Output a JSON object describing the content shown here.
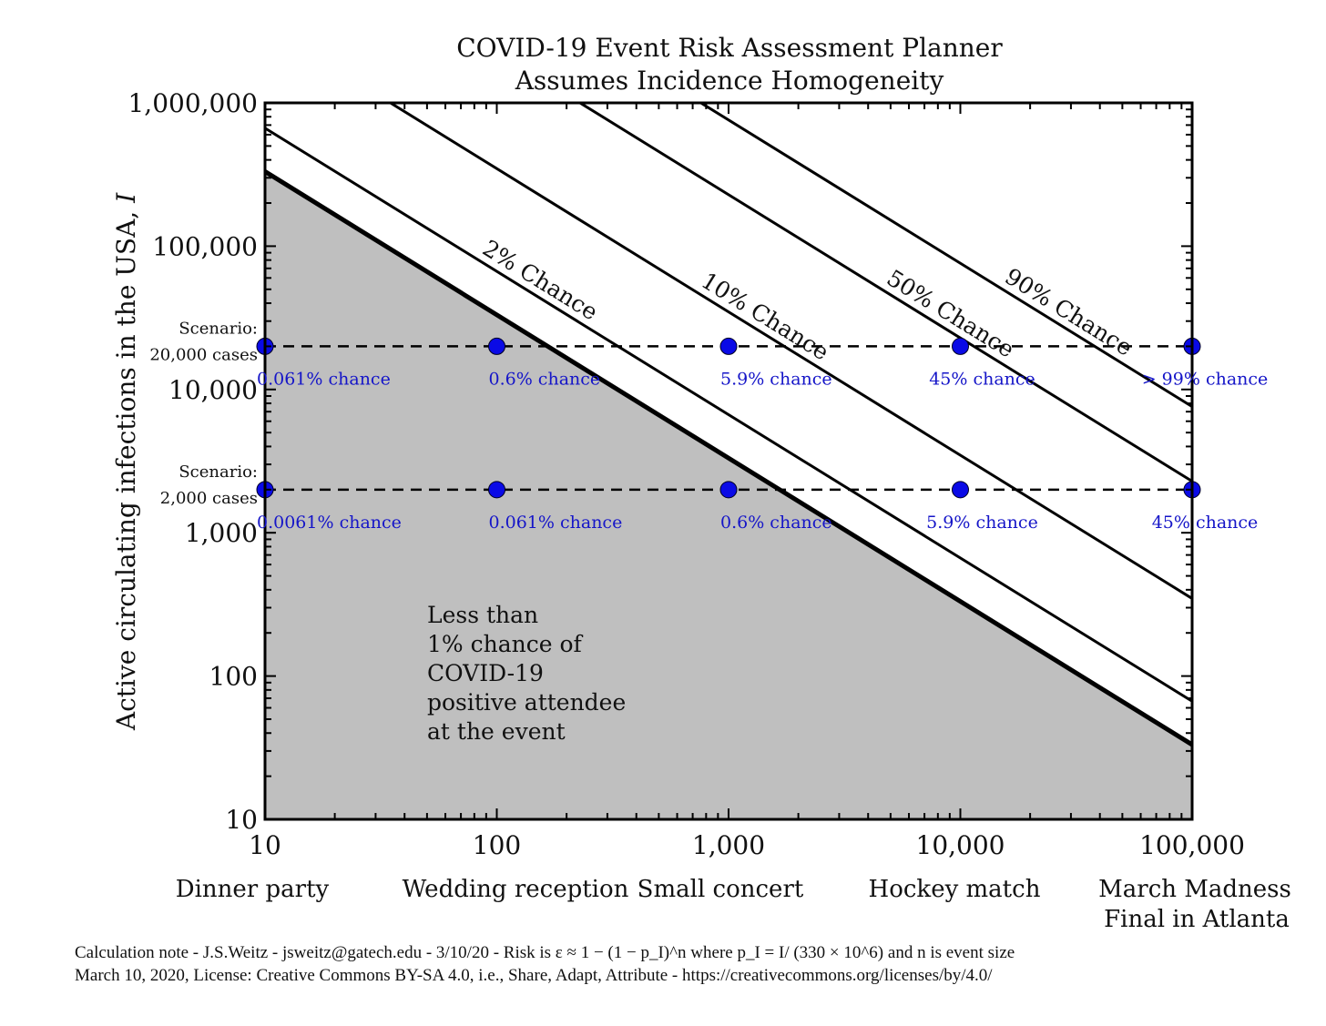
{
  "chart_data": {
    "type": "line",
    "title": "COVID-19 Event Risk Assessment Planner",
    "subtitle": "Assumes Incidence Homogeneity",
    "ylabel": "Active circulating infections in the USA, I",
    "ylabel_symbol": "I",
    "xscale": "log",
    "yscale": "log",
    "xlim": [
      10,
      100000
    ],
    "ylim": [
      10,
      1000000
    ],
    "x_ticks": [
      "10",
      "100",
      "1,000",
      "10,000",
      "100,000"
    ],
    "y_ticks": [
      "10",
      "100",
      "1,000",
      "10,000",
      "100,000",
      "1,000,000"
    ],
    "categories": [
      "Dinner party",
      "Wedding reception",
      "Small concert",
      "Hockey match",
      "March Madness Final in Atlanta"
    ],
    "category_sizes": [
      10,
      100,
      1000,
      10000,
      100000
    ],
    "series": [
      {
        "name": "1% threshold",
        "probability": 0.01,
        "x": [
          10,
          100000
        ],
        "y": [
          331700,
          33.2
        ]
      },
      {
        "name": "2% Chance",
        "label": "2% Chance",
        "probability": 0.02,
        "x": [
          10,
          100000
        ],
        "y": [
          666700,
          66.7
        ]
      },
      {
        "name": "10% Chance",
        "label": "10% Chance",
        "probability": 0.1,
        "x": [
          10,
          100000
        ],
        "y": [
          3477000,
          347.7
        ]
      },
      {
        "name": "50% Chance",
        "label": "50% Chance",
        "probability": 0.5,
        "x": [
          10,
          100000
        ],
        "y": [
          22870000,
          2287
        ]
      },
      {
        "name": "90% Chance",
        "label": "90% Chance",
        "probability": 0.9,
        "x": [
          10,
          100000
        ],
        "y": [
          75980000,
          7598
        ]
      }
    ],
    "shaded_region": "Less than 1% chance of COVID-19 positive attendee at the event",
    "shaded_lines": [
      "Less than",
      "1% chance of",
      "COVID-19",
      "positive attendee",
      "at the event"
    ],
    "scenarios": [
      {
        "label_line1": "Scenario:",
        "label_line2": "20,000 cases",
        "infections": 20000,
        "chances": [
          "0.061% chance",
          "0.6% chance",
          "5.9% chance",
          "45% chance",
          "> 99% chance"
        ]
      },
      {
        "label_line1": "Scenario:",
        "label_line2": "2,000 cases",
        "infections": 2000,
        "chances": [
          "0.0061% chance",
          "0.061% chance",
          "0.6% chance",
          "5.9% chance",
          "45% chance"
        ]
      }
    ],
    "grid": false,
    "colors": {
      "shade": "#bfbfbf",
      "marker": "#0a0ae6",
      "chance_text": "#1515c8",
      "line": "#000000"
    }
  },
  "footnote": {
    "line1": "Calculation note - J.S.Weitz - jsweitz@gatech.edu - 3/10/20 - Risk is ε ≈ 1 − (1 − p_I)^n where p_I = I/ (330 × 10^6) and n is event size",
    "line2": "March 10, 2020, License: Creative Commons BY-SA 4.0, i.e., Share, Adapt, Attribute - https://creativecommons.org/licenses/by/4.0/"
  }
}
